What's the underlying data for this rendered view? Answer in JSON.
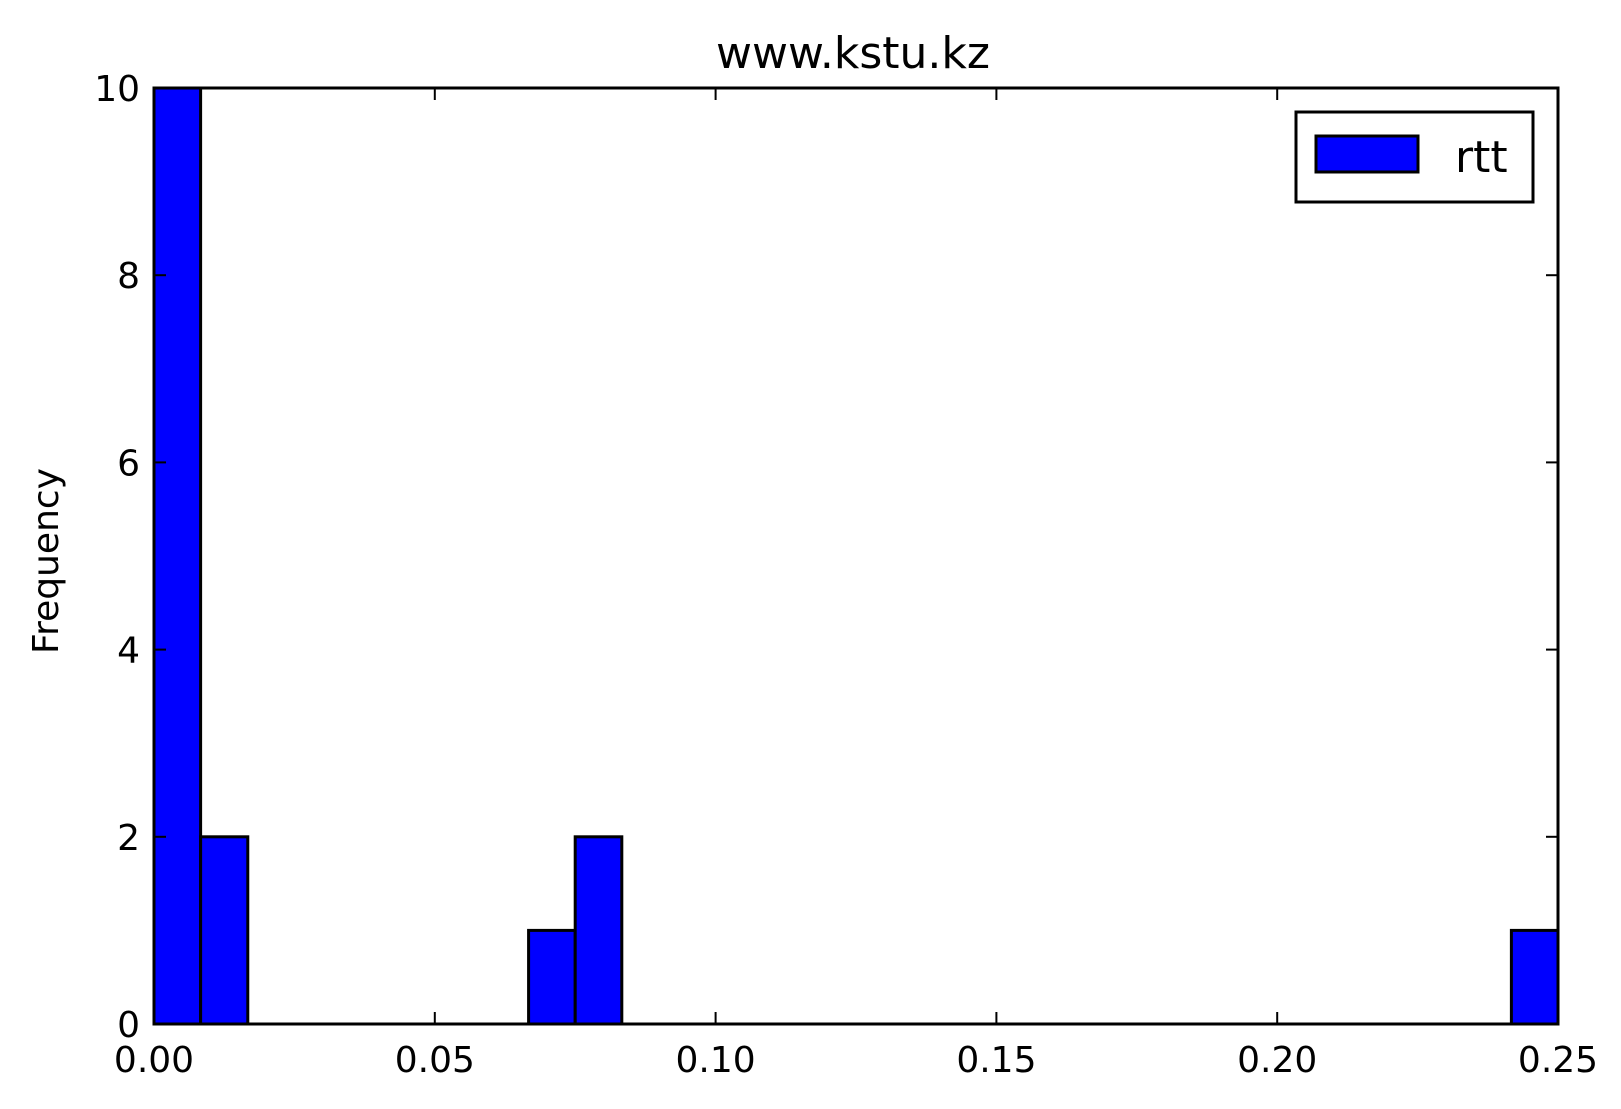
{
  "chart_data": {
    "type": "bar",
    "title": "www.kstu.kz",
    "xlabel": "",
    "ylabel": "Frequency",
    "xlim": [
      0.0,
      0.25
    ],
    "ylim": [
      0,
      10
    ],
    "x_ticks": [
      0.0,
      0.05,
      0.1,
      0.15,
      0.2,
      0.25
    ],
    "x_tick_labels": [
      "0.00",
      "0.05",
      "0.10",
      "0.15",
      "0.20",
      "0.25"
    ],
    "y_ticks": [
      0,
      2,
      4,
      6,
      8,
      10
    ],
    "y_tick_labels": [
      "0",
      "2",
      "4",
      "6",
      "8",
      "10"
    ],
    "grid": false,
    "legend": {
      "position": "top-right",
      "entries": [
        {
          "name": "rtt",
          "color": "#0000ff"
        }
      ]
    },
    "series": [
      {
        "name": "rtt",
        "color": "#0000ff",
        "bins": [
          {
            "x0": 0.0,
            "x1": 0.0083,
            "count": 10
          },
          {
            "x0": 0.0083,
            "x1": 0.0167,
            "count": 2
          },
          {
            "x0": 0.0667,
            "x1": 0.075,
            "count": 1
          },
          {
            "x0": 0.075,
            "x1": 0.0833,
            "count": 2
          },
          {
            "x0": 0.2417,
            "x1": 0.25,
            "count": 1
          }
        ]
      }
    ]
  }
}
